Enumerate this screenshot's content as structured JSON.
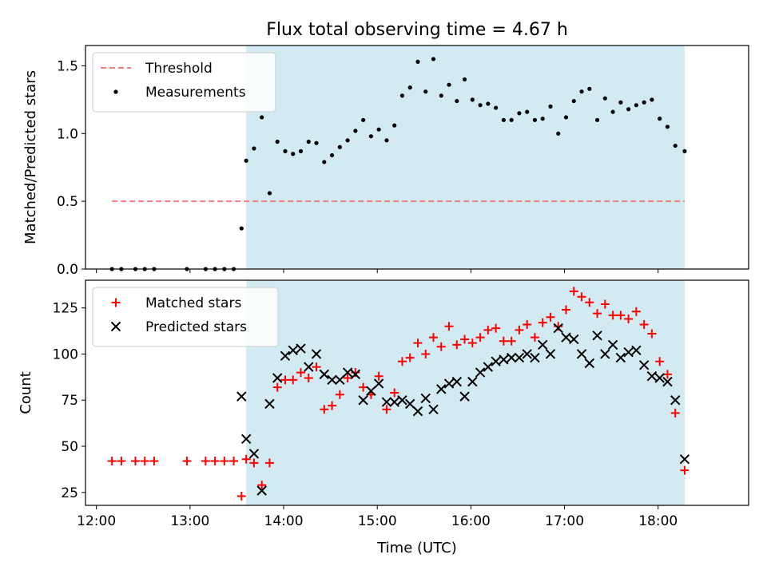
{
  "chart_data": {
    "type": "scatter",
    "title": "Flux total observing time = 4.67 h",
    "xlabel": "Time (UTC)",
    "x_ticks": [
      "12:00",
      "13:00",
      "14:00",
      "15:00",
      "16:00",
      "17:00",
      "18:00"
    ],
    "x_range": [
      "11:53",
      "18:58"
    ],
    "observing_window": [
      "13:36",
      "18:17"
    ],
    "shading_color": "#add8e6",
    "panels": [
      {
        "ylabel": "Matched/Predicted stars",
        "ylim": [
          0,
          1.65
        ],
        "y_ticks": [
          "0.0",
          "0.5",
          "1.0",
          "1.5"
        ],
        "legend_position": "top-left",
        "threshold": {
          "name": "Threshold",
          "value": 0.5,
          "x_range": [
            "12:10",
            "18:17"
          ],
          "color": "#f08080"
        },
        "series": [
          {
            "name": "Measurements",
            "color": "#000000",
            "marker": "dot",
            "points": [
              [
                "12:10",
                0
              ],
              [
                "12:16",
                0
              ],
              [
                "12:25",
                0
              ],
              [
                "12:31",
                0
              ],
              [
                "12:37",
                0
              ],
              [
                "12:58",
                0
              ],
              [
                "13:10",
                0
              ],
              [
                "13:16",
                0
              ],
              [
                "13:22",
                0
              ],
              [
                "13:28",
                0
              ],
              [
                "13:33",
                0.3
              ],
              [
                "13:36",
                0.8
              ],
              [
                "13:41",
                0.89
              ],
              [
                "13:46",
                1.12
              ],
              [
                "13:51",
                0.56
              ],
              [
                "13:56",
                0.94
              ],
              [
                "14:01",
                0.87
              ],
              [
                "14:06",
                0.85
              ],
              [
                "14:11",
                0.87
              ],
              [
                "14:16",
                0.94
              ],
              [
                "14:21",
                0.93
              ],
              [
                "14:26",
                0.79
              ],
              [
                "14:31",
                0.84
              ],
              [
                "14:36",
                0.9
              ],
              [
                "14:41",
                0.95
              ],
              [
                "14:46",
                1.02
              ],
              [
                "14:51",
                1.1
              ],
              [
                "14:56",
                0.98
              ],
              [
                "15:01",
                1.03
              ],
              [
                "15:06",
                0.95
              ],
              [
                "15:11",
                1.06
              ],
              [
                "15:16",
                1.28
              ],
              [
                "15:21",
                1.34
              ],
              [
                "15:26",
                1.53
              ],
              [
                "15:31",
                1.31
              ],
              [
                "15:36",
                1.55
              ],
              [
                "15:41",
                1.28
              ],
              [
                "15:46",
                1.36
              ],
              [
                "15:51",
                1.24
              ],
              [
                "15:56",
                1.4
              ],
              [
                "16:01",
                1.25
              ],
              [
                "16:06",
                1.21
              ],
              [
                "16:11",
                1.22
              ],
              [
                "16:16",
                1.19
              ],
              [
                "16:21",
                1.1
              ],
              [
                "16:26",
                1.1
              ],
              [
                "16:31",
                1.15
              ],
              [
                "16:36",
                1.16
              ],
              [
                "16:41",
                1.1
              ],
              [
                "16:46",
                1.11
              ],
              [
                "16:51",
                1.2
              ],
              [
                "16:56",
                1.0
              ],
              [
                "17:01",
                1.12
              ],
              [
                "17:06",
                1.24
              ],
              [
                "17:11",
                1.31
              ],
              [
                "17:16",
                1.33
              ],
              [
                "17:21",
                1.1
              ],
              [
                "17:26",
                1.26
              ],
              [
                "17:31",
                1.16
              ],
              [
                "17:36",
                1.23
              ],
              [
                "17:41",
                1.18
              ],
              [
                "17:46",
                1.21
              ],
              [
                "17:51",
                1.23
              ],
              [
                "17:56",
                1.25
              ],
              [
                "18:01",
                1.11
              ],
              [
                "18:06",
                1.05
              ],
              [
                "18:11",
                0.91
              ],
              [
                "18:17",
                0.87
              ]
            ]
          }
        ]
      },
      {
        "ylabel": "Count",
        "ylim": [
          18,
          140
        ],
        "y_ticks": [
          "25",
          "50",
          "75",
          "100",
          "125"
        ],
        "legend_position": "top-left",
        "series": [
          {
            "name": "Matched stars",
            "color": "#ff0000",
            "marker": "plus",
            "points": [
              [
                "12:10",
                42
              ],
              [
                "12:16",
                42
              ],
              [
                "12:25",
                42
              ],
              [
                "12:31",
                42
              ],
              [
                "12:37",
                42
              ],
              [
                "12:58",
                42
              ],
              [
                "13:10",
                42
              ],
              [
                "13:16",
                42
              ],
              [
                "13:22",
                42
              ],
              [
                "13:28",
                42
              ],
              [
                "13:33",
                23
              ],
              [
                "13:36",
                43
              ],
              [
                "13:41",
                41
              ],
              [
                "13:46",
                29
              ],
              [
                "13:51",
                41
              ],
              [
                "13:56",
                82
              ],
              [
                "14:01",
                86
              ],
              [
                "14:06",
                86
              ],
              [
                "14:11",
                90
              ],
              [
                "14:16",
                87
              ],
              [
                "14:21",
                93
              ],
              [
                "14:26",
                70
              ],
              [
                "14:31",
                72
              ],
              [
                "14:36",
                78
              ],
              [
                "14:41",
                87
              ],
              [
                "14:46",
                90
              ],
              [
                "14:51",
                82
              ],
              [
                "14:56",
                78
              ],
              [
                "15:01",
                88
              ],
              [
                "15:06",
                70
              ],
              [
                "15:11",
                79
              ],
              [
                "15:16",
                96
              ],
              [
                "15:21",
                98
              ],
              [
                "15:26",
                106
              ],
              [
                "15:31",
                100
              ],
              [
                "15:36",
                109
              ],
              [
                "15:41",
                104
              ],
              [
                "15:46",
                115
              ],
              [
                "15:51",
                105
              ],
              [
                "15:56",
                108
              ],
              [
                "16:01",
                106
              ],
              [
                "16:06",
                109
              ],
              [
                "16:11",
                113
              ],
              [
                "16:16",
                114
              ],
              [
                "16:21",
                107
              ],
              [
                "16:26",
                107
              ],
              [
                "16:31",
                113
              ],
              [
                "16:36",
                116
              ],
              [
                "16:41",
                109
              ],
              [
                "16:46",
                117
              ],
              [
                "16:51",
                120
              ],
              [
                "16:56",
                115
              ],
              [
                "17:01",
                124
              ],
              [
                "17:06",
                134
              ],
              [
                "17:11",
                131
              ],
              [
                "17:16",
                128
              ],
              [
                "17:21",
                122
              ],
              [
                "17:26",
                127
              ],
              [
                "17:31",
                121
              ],
              [
                "17:36",
                121
              ],
              [
                "17:41",
                119
              ],
              [
                "17:46",
                123
              ],
              [
                "17:51",
                116
              ],
              [
                "17:56",
                111
              ],
              [
                "18:01",
                96
              ],
              [
                "18:06",
                89
              ],
              [
                "18:11",
                68
              ],
              [
                "18:17",
                37
              ]
            ]
          },
          {
            "name": "Predicted stars",
            "color": "#000000",
            "marker": "x",
            "points": [
              [
                "13:33",
                77
              ],
              [
                "13:36",
                54
              ],
              [
                "13:41",
                46
              ],
              [
                "13:46",
                26
              ],
              [
                "13:51",
                73
              ],
              [
                "13:56",
                87
              ],
              [
                "14:01",
                99
              ],
              [
                "14:06",
                102
              ],
              [
                "14:11",
                103
              ],
              [
                "14:16",
                93
              ],
              [
                "14:21",
                100
              ],
              [
                "14:26",
                89
              ],
              [
                "14:31",
                86
              ],
              [
                "14:36",
                86
              ],
              [
                "14:41",
                90
              ],
              [
                "14:46",
                89
              ],
              [
                "14:51",
                75
              ],
              [
                "14:56",
                80
              ],
              [
                "15:01",
                84
              ],
              [
                "15:06",
                74
              ],
              [
                "15:11",
                74
              ],
              [
                "15:16",
                75
              ],
              [
                "15:21",
                73
              ],
              [
                "15:26",
                69
              ],
              [
                "15:31",
                76
              ],
              [
                "15:36",
                70
              ],
              [
                "15:41",
                81
              ],
              [
                "15:46",
                84
              ],
              [
                "15:51",
                85
              ],
              [
                "15:56",
                77
              ],
              [
                "16:01",
                85
              ],
              [
                "16:06",
                90
              ],
              [
                "16:11",
                93
              ],
              [
                "16:16",
                96
              ],
              [
                "16:21",
                97
              ],
              [
                "16:26",
                98
              ],
              [
                "16:31",
                98
              ],
              [
                "16:36",
                100
              ],
              [
                "16:41",
                98
              ],
              [
                "16:46",
                105
              ],
              [
                "16:51",
                100
              ],
              [
                "16:56",
                114
              ],
              [
                "17:01",
                109
              ],
              [
                "17:06",
                108
              ],
              [
                "17:11",
                100
              ],
              [
                "17:16",
                95
              ],
              [
                "17:21",
                110
              ],
              [
                "17:26",
                100
              ],
              [
                "17:31",
                105
              ],
              [
                "17:36",
                98
              ],
              [
                "17:41",
                101
              ],
              [
                "17:46",
                102
              ],
              [
                "17:51",
                94
              ],
              [
                "17:56",
                88
              ],
              [
                "18:01",
                87
              ],
              [
                "18:06",
                85
              ],
              [
                "18:11",
                75
              ],
              [
                "18:17",
                43
              ]
            ]
          }
        ]
      }
    ]
  }
}
